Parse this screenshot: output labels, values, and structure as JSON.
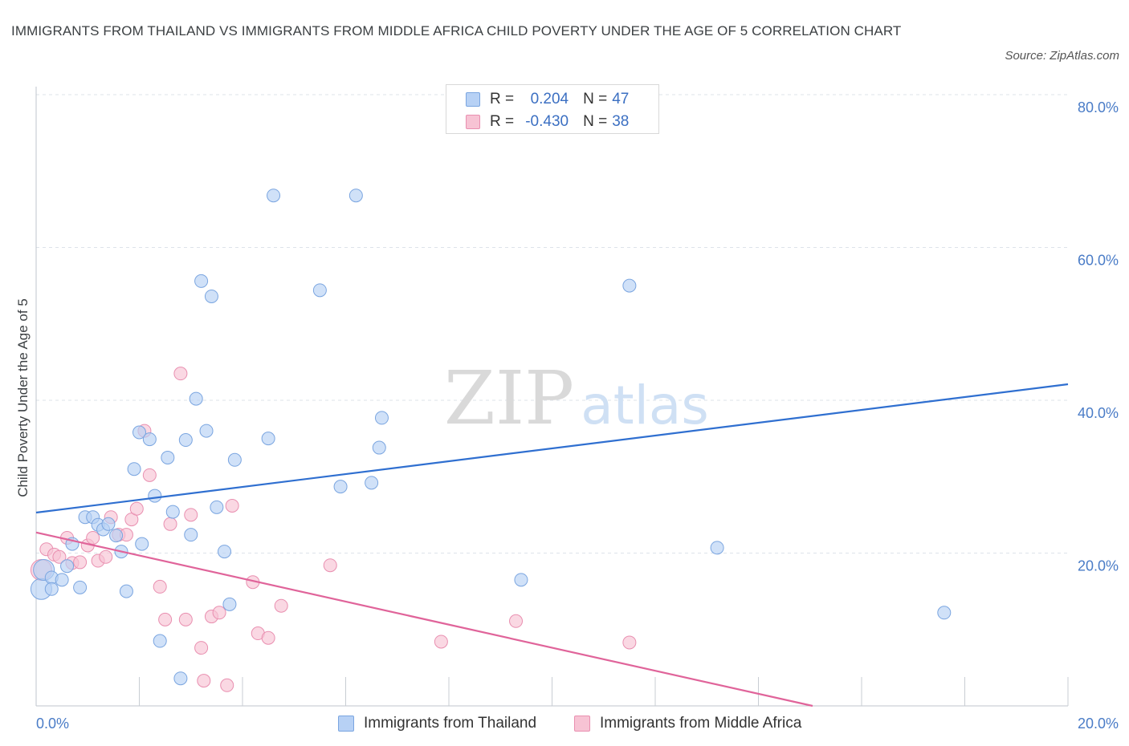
{
  "title": "IMMIGRANTS FROM THAILAND VS IMMIGRANTS FROM MIDDLE AFRICA CHILD POVERTY UNDER THE AGE OF 5 CORRELATION CHART",
  "source": "Source: ZipAtlas.com",
  "watermark": {
    "zip": "ZIP",
    "atlas": "atlas"
  },
  "colors": {
    "thailand_fill": "#b7d1f5",
    "thailand_stroke": "#7aa5e0",
    "thailand_line": "#2f6fd0",
    "africa_fill": "#f7c3d4",
    "africa_stroke": "#e98fb0",
    "africa_line": "#e0649a",
    "grid": "#dde3ea",
    "tick_text": "#4a7cc7"
  },
  "legend": {
    "rows": [
      {
        "r_label": "R =",
        "r_value": "0.204",
        "n_label": "N =",
        "n_value": "47"
      },
      {
        "r_label": "R =",
        "r_value": "-0.430",
        "n_label": "N =",
        "n_value": "38"
      }
    ]
  },
  "chart_data": {
    "type": "scatter",
    "title": "IMMIGRANTS FROM THAILAND VS IMMIGRANTS FROM MIDDLE AFRICA CHILD POVERTY UNDER THE AGE OF 5 CORRELATION CHART",
    "xlabel": "",
    "ylabel": "Child Poverty Under the Age of 5",
    "xlim": [
      0,
      20
    ],
    "ylim": [
      0,
      80
    ],
    "x_tick_labels": [
      "0.0%",
      "20.0%"
    ],
    "y_ticks": [
      20,
      40,
      60,
      80
    ],
    "y_tick_labels": [
      "20.0%",
      "40.0%",
      "60.0%",
      "80.0%"
    ],
    "grid": true,
    "legend_position": "top-center",
    "series": [
      {
        "name": "Immigrants from Thailand",
        "r": 0.204,
        "n": 47,
        "trend": {
          "x": [
            0,
            20
          ],
          "y": [
            25.3,
            42.1
          ]
        },
        "points": [
          {
            "x": 0.1,
            "y": 15.3,
            "big": true
          },
          {
            "x": 0.15,
            "y": 17.8,
            "big": true
          },
          {
            "x": 0.3,
            "y": 16.8
          },
          {
            "x": 0.3,
            "y": 15.3
          },
          {
            "x": 0.5,
            "y": 16.5
          },
          {
            "x": 0.6,
            "y": 18.3
          },
          {
            "x": 0.7,
            "y": 21.2
          },
          {
            "x": 0.85,
            "y": 15.5
          },
          {
            "x": 0.95,
            "y": 24.7
          },
          {
            "x": 1.1,
            "y": 24.7
          },
          {
            "x": 1.2,
            "y": 23.7
          },
          {
            "x": 1.3,
            "y": 23.1
          },
          {
            "x": 1.4,
            "y": 23.8
          },
          {
            "x": 1.55,
            "y": 22.3
          },
          {
            "x": 1.65,
            "y": 20.2
          },
          {
            "x": 1.75,
            "y": 15.0
          },
          {
            "x": 1.9,
            "y": 31.0
          },
          {
            "x": 2.0,
            "y": 35.8
          },
          {
            "x": 2.05,
            "y": 21.2
          },
          {
            "x": 2.2,
            "y": 34.9
          },
          {
            "x": 2.3,
            "y": 27.5
          },
          {
            "x": 2.4,
            "y": 8.5
          },
          {
            "x": 2.55,
            "y": 32.5
          },
          {
            "x": 2.65,
            "y": 25.4
          },
          {
            "x": 2.8,
            "y": 3.6
          },
          {
            "x": 2.9,
            "y": 34.8
          },
          {
            "x": 3.0,
            "y": 22.4
          },
          {
            "x": 3.1,
            "y": 40.2
          },
          {
            "x": 3.2,
            "y": 55.6
          },
          {
            "x": 3.3,
            "y": 36.0
          },
          {
            "x": 3.4,
            "y": 53.6
          },
          {
            "x": 3.5,
            "y": 26.0
          },
          {
            "x": 3.65,
            "y": 20.2
          },
          {
            "x": 3.75,
            "y": 13.3
          },
          {
            "x": 3.85,
            "y": 32.2
          },
          {
            "x": 4.5,
            "y": 35.0
          },
          {
            "x": 4.6,
            "y": 66.8
          },
          {
            "x": 5.5,
            "y": 54.4
          },
          {
            "x": 5.9,
            "y": 28.7
          },
          {
            "x": 6.2,
            "y": 66.8
          },
          {
            "x": 6.5,
            "y": 29.2
          },
          {
            "x": 6.65,
            "y": 33.8
          },
          {
            "x": 6.7,
            "y": 37.7
          },
          {
            "x": 9.4,
            "y": 16.5
          },
          {
            "x": 11.5,
            "y": 55.0
          },
          {
            "x": 13.2,
            "y": 20.7
          },
          {
            "x": 17.6,
            "y": 12.2
          }
        ]
      },
      {
        "name": "Immigrants from Middle Africa",
        "r": -0.43,
        "n": 38,
        "trend": {
          "x": [
            0,
            15.05
          ],
          "y": [
            22.7,
            0
          ]
        },
        "points": [
          {
            "x": 0.1,
            "y": 17.8,
            "big": true
          },
          {
            "x": 0.2,
            "y": 20.5
          },
          {
            "x": 0.35,
            "y": 19.8
          },
          {
            "x": 0.45,
            "y": 19.5
          },
          {
            "x": 0.6,
            "y": 22.0
          },
          {
            "x": 0.7,
            "y": 18.7
          },
          {
            "x": 0.85,
            "y": 18.8
          },
          {
            "x": 1.0,
            "y": 21.0
          },
          {
            "x": 1.1,
            "y": 22.0
          },
          {
            "x": 1.2,
            "y": 19.0
          },
          {
            "x": 1.35,
            "y": 19.5
          },
          {
            "x": 1.45,
            "y": 24.7
          },
          {
            "x": 1.6,
            "y": 22.4
          },
          {
            "x": 1.75,
            "y": 22.4
          },
          {
            "x": 1.85,
            "y": 24.4
          },
          {
            "x": 1.95,
            "y": 25.8
          },
          {
            "x": 2.1,
            "y": 36.0
          },
          {
            "x": 2.2,
            "y": 30.2
          },
          {
            "x": 2.4,
            "y": 15.6
          },
          {
            "x": 2.5,
            "y": 11.3
          },
          {
            "x": 2.6,
            "y": 23.8
          },
          {
            "x": 2.8,
            "y": 43.5
          },
          {
            "x": 2.9,
            "y": 11.3
          },
          {
            "x": 3.0,
            "y": 25.0
          },
          {
            "x": 3.2,
            "y": 7.6
          },
          {
            "x": 3.25,
            "y": 3.3
          },
          {
            "x": 3.4,
            "y": 11.7
          },
          {
            "x": 3.55,
            "y": 12.2
          },
          {
            "x": 3.7,
            "y": 2.7
          },
          {
            "x": 3.8,
            "y": 26.2
          },
          {
            "x": 4.2,
            "y": 16.2
          },
          {
            "x": 4.3,
            "y": 9.5
          },
          {
            "x": 4.5,
            "y": 8.9
          },
          {
            "x": 4.75,
            "y": 13.1
          },
          {
            "x": 5.7,
            "y": 18.4
          },
          {
            "x": 7.85,
            "y": 8.4
          },
          {
            "x": 9.3,
            "y": 11.1
          },
          {
            "x": 11.5,
            "y": 8.3
          }
        ]
      }
    ]
  }
}
